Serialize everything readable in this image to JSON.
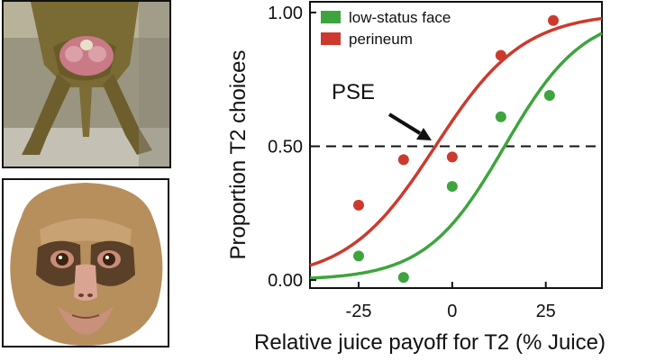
{
  "images": {
    "top_photo": {
      "icon": "monkey-perineum-photo"
    },
    "bottom_photo": {
      "icon": "monkey-face-photo"
    }
  },
  "chart_data": {
    "type": "scatter",
    "title": "",
    "xlabel": "Relative juice payoff for T2 (% Juice)",
    "ylabel": "Proportion T2 choices",
    "xlim": [
      -38,
      40
    ],
    "ylim": [
      -0.03,
      1.04
    ],
    "xticks": [
      -25,
      0,
      25
    ],
    "xtick_labels": [
      "-25",
      "0",
      "25"
    ],
    "yticks": [
      0.0,
      0.5,
      1.0
    ],
    "ytick_labels": [
      "0.00",
      "0.50",
      "1.00"
    ],
    "reference_line": {
      "y": 0.5,
      "style": "dashed"
    },
    "annotation": {
      "text": "PSE",
      "x": -4.5,
      "y": 0.5
    },
    "legend": {
      "placement": "top-left"
    },
    "series": [
      {
        "name": "low-status face",
        "color": "#3ea43e",
        "points": [
          {
            "x": -25,
            "y": 0.09
          },
          {
            "x": -13,
            "y": 0.01
          },
          {
            "x": 0,
            "y": 0.35
          },
          {
            "x": 13,
            "y": 0.61
          },
          {
            "x": 26,
            "y": 0.69
          }
        ],
        "fit": {
          "midpoint": 14,
          "slope": 0.095
        }
      },
      {
        "name": "perineum",
        "color": "#cc3a2e",
        "points": [
          {
            "x": -25,
            "y": 0.28
          },
          {
            "x": -13,
            "y": 0.45
          },
          {
            "x": 0,
            "y": 0.46
          },
          {
            "x": 13,
            "y": 0.84
          },
          {
            "x": 27,
            "y": 0.97
          }
        ],
        "fit": {
          "midpoint": -4.5,
          "slope": 0.085
        }
      }
    ]
  }
}
